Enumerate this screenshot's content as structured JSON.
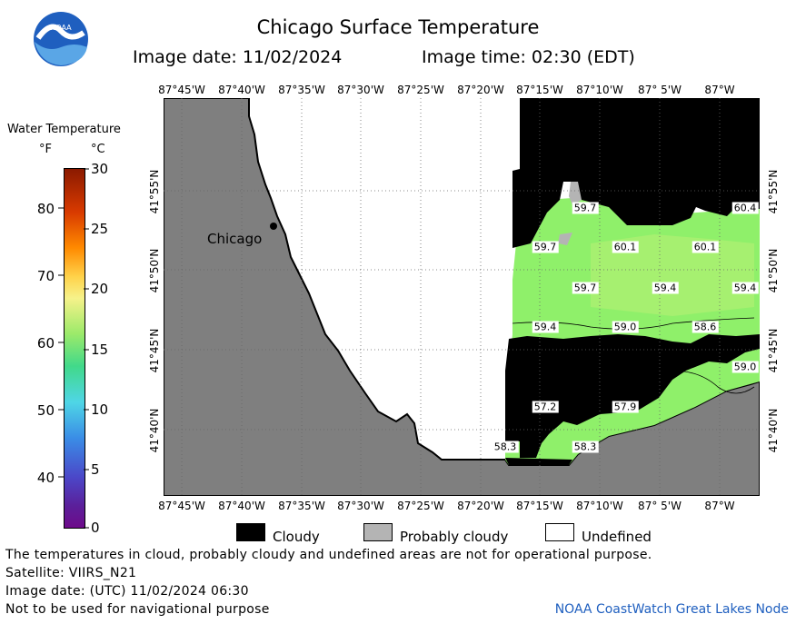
{
  "header": {
    "title": "Chicago Surface Temperature",
    "image_date": "Image date: 11/02/2024",
    "image_time": "Image time: 02:30 (EDT)",
    "logo_text": "NOAA"
  },
  "legend": {
    "title": "Water Temperature",
    "unit_f": "°F",
    "unit_c": "°C",
    "f_ticks": [
      "80",
      "70",
      "60",
      "50",
      "40"
    ],
    "c_ticks": [
      "30",
      "25",
      "20",
      "15",
      "10",
      "5",
      "0"
    ]
  },
  "map": {
    "lon_ticks": [
      "87°45'W",
      "87°40'W",
      "87°35'W",
      "87°30'W",
      "87°25'W",
      "87°20'W",
      "87°15'W",
      "87°10'W",
      "87° 5'W",
      "87°W"
    ],
    "lat_ticks": [
      "41°55'N",
      "41°50'N",
      "41°45'N",
      "41°40'N"
    ],
    "city": "Chicago",
    "temps": [
      "59.7",
      "60.4",
      "59.7",
      "60.1",
      "60.1",
      "59.7",
      "59.4",
      "59.4",
      "59.4",
      "59.0",
      "58.6",
      "59.0",
      "57.2",
      "57.9",
      "58.3",
      "58.3"
    ]
  },
  "key": {
    "cloudy": "Cloudy",
    "probably_cloudy": "Probably cloudy",
    "undefined": "Undefined"
  },
  "footer": {
    "disclaimer": "The temperatures in cloud, probably cloudy and undefined areas are not for operational purpose.",
    "satellite": "Satellite: VIIRS_N21",
    "utc_date": "Image date: (UTC) 11/02/2024  06:30",
    "nav": "Not to be used for navigational purpose",
    "node": "NOAA CoastWatch Great Lakes Node"
  },
  "colors": {
    "land": "#7f7f7f",
    "cloud": "#000000",
    "probably_cloudy": "#b4b4b4",
    "water_warm": "#8ff06a",
    "water_mid": "#a6f070"
  }
}
